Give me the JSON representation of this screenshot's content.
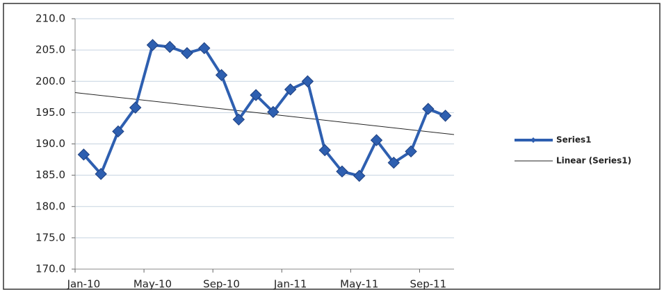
{
  "chart_data": {
    "type": "line",
    "categories": [
      "Jan-10",
      null,
      null,
      null,
      "May-10",
      null,
      null,
      null,
      "Sep-10",
      null,
      null,
      null,
      "Jan-11",
      null,
      null,
      null,
      "May-11",
      null,
      null,
      null,
      "Sep-11",
      null
    ],
    "series": [
      {
        "name": "Series1",
        "color": "#2e5fb0",
        "values": [
          188.3,
          185.2,
          192.0,
          195.8,
          205.8,
          205.5,
          204.5,
          205.3,
          201.0,
          193.9,
          197.8,
          195.1,
          198.7,
          200.0,
          189.0,
          185.6,
          184.9,
          190.6,
          187.0,
          188.8,
          195.6,
          194.5
        ]
      }
    ],
    "trendline": {
      "name": "Linear (Series1)",
      "color": "#222222",
      "start": 198.2,
      "end": 191.5
    },
    "ylim": [
      170,
      210
    ],
    "yticks": [
      {
        "value": 170,
        "label": "170.0"
      },
      {
        "value": 175,
        "label": "175.0"
      },
      {
        "value": 180,
        "label": "180.0"
      },
      {
        "value": 185,
        "label": "185.0"
      },
      {
        "value": 190,
        "label": "190.0"
      },
      {
        "value": 195,
        "label": "195.0"
      },
      {
        "value": 200,
        "label": "200.0"
      },
      {
        "value": 205,
        "label": "205.0"
      },
      {
        "value": 210,
        "label": "210.0"
      }
    ],
    "grid": true,
    "legend": "right"
  }
}
